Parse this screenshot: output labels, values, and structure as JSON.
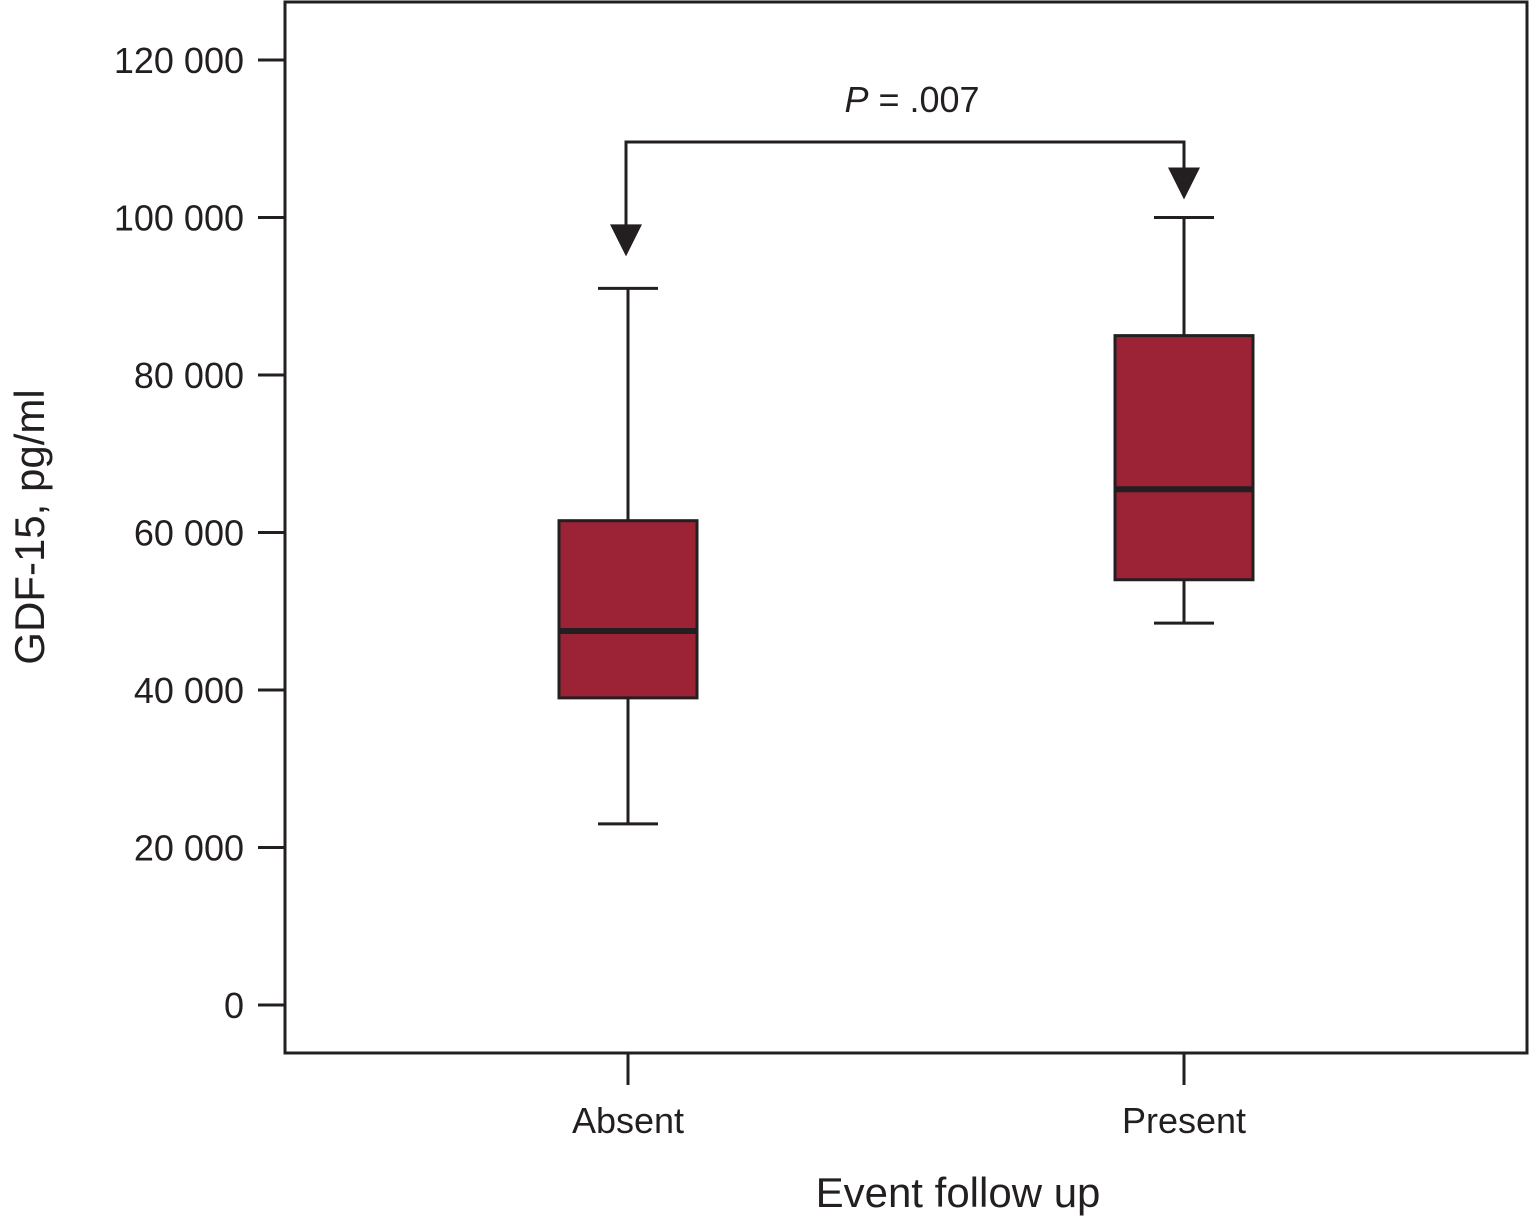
{
  "chart_data": {
    "type": "box",
    "title": "",
    "xlabel": "Event follow up",
    "ylabel": "GDF-15, pg/ml",
    "ylim": [
      0,
      120000
    ],
    "yticks": [
      0,
      20000,
      40000,
      60000,
      80000,
      100000,
      120000
    ],
    "ytick_labels": [
      "0",
      "20 000",
      "40 000",
      "60 000",
      "80 000",
      "100 000",
      "120 000"
    ],
    "categories": [
      "Absent",
      "Present"
    ],
    "boxes": [
      {
        "category": "Absent",
        "whisker_low": 23000,
        "q1": 39000,
        "median": 47500,
        "q3": 61500,
        "whisker_high": 91000
      },
      {
        "category": "Present",
        "whisker_low": 48500,
        "q1": 54000,
        "median": 65500,
        "q3": 85000,
        "whisker_high": 100000
      }
    ],
    "annotation": {
      "prefix": "P",
      "text": " = .007",
      "between": [
        "Absent",
        "Present"
      ]
    },
    "colors": {
      "box_fill": "#9b2335",
      "line": "#231f20"
    },
    "grid": false
  }
}
